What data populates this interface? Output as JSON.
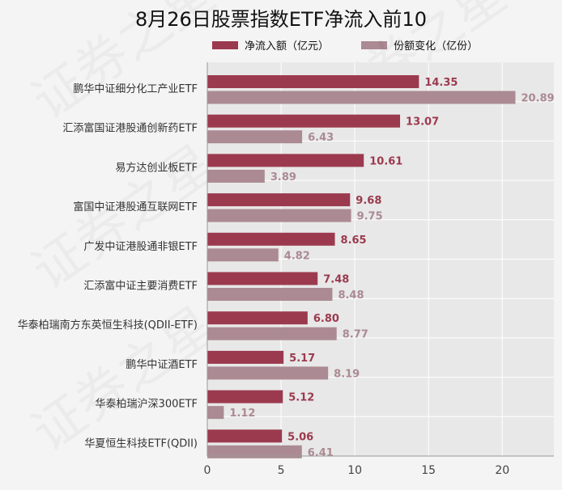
{
  "chart_data": {
    "type": "bar",
    "orientation": "horizontal",
    "title": "8月26日股票指数ETF净流入前10",
    "categories": [
      "鹏华中证细分化工产业ETF",
      "汇添富国证港股通创新药ETF",
      "易方达创业板ETF",
      "富国中证港股通互联网ETF",
      "广发中证港股通非银ETF",
      "汇添富中证主要消费ETF",
      "华泰柏瑞南方东英恒生科技(QDII-ETF)",
      "鹏华中证酒ETF",
      "华泰柏瑞沪深300ETF",
      "华夏恒生科技ETF(QDII)"
    ],
    "series": [
      {
        "name": "净流入额（亿元）",
        "color": "#9b3a4e",
        "values": [
          14.35,
          13.07,
          10.61,
          9.68,
          8.65,
          7.48,
          6.8,
          5.17,
          5.12,
          5.06
        ],
        "labels": [
          "14.35",
          "13.07",
          "10.61",
          "9.68",
          "8.65",
          "7.48",
          "6.80",
          "5.17",
          "5.12",
          "5.06"
        ]
      },
      {
        "name": "份额变化（亿份）",
        "color": "#ab8a93",
        "values": [
          20.89,
          6.43,
          3.89,
          9.75,
          4.82,
          8.48,
          8.77,
          8.19,
          1.12,
          6.41
        ],
        "labels": [
          "20.89",
          "6.43",
          "3.89",
          "9.75",
          "4.82",
          "8.48",
          "8.77",
          "8.19",
          "1.12",
          "6.41"
        ]
      }
    ],
    "x_ticks": [
      "0",
      "5",
      "10",
      "15",
      "20"
    ],
    "xlim": [
      0,
      23.5
    ],
    "grid": true,
    "legend": "top"
  },
  "watermark": "证券之星"
}
